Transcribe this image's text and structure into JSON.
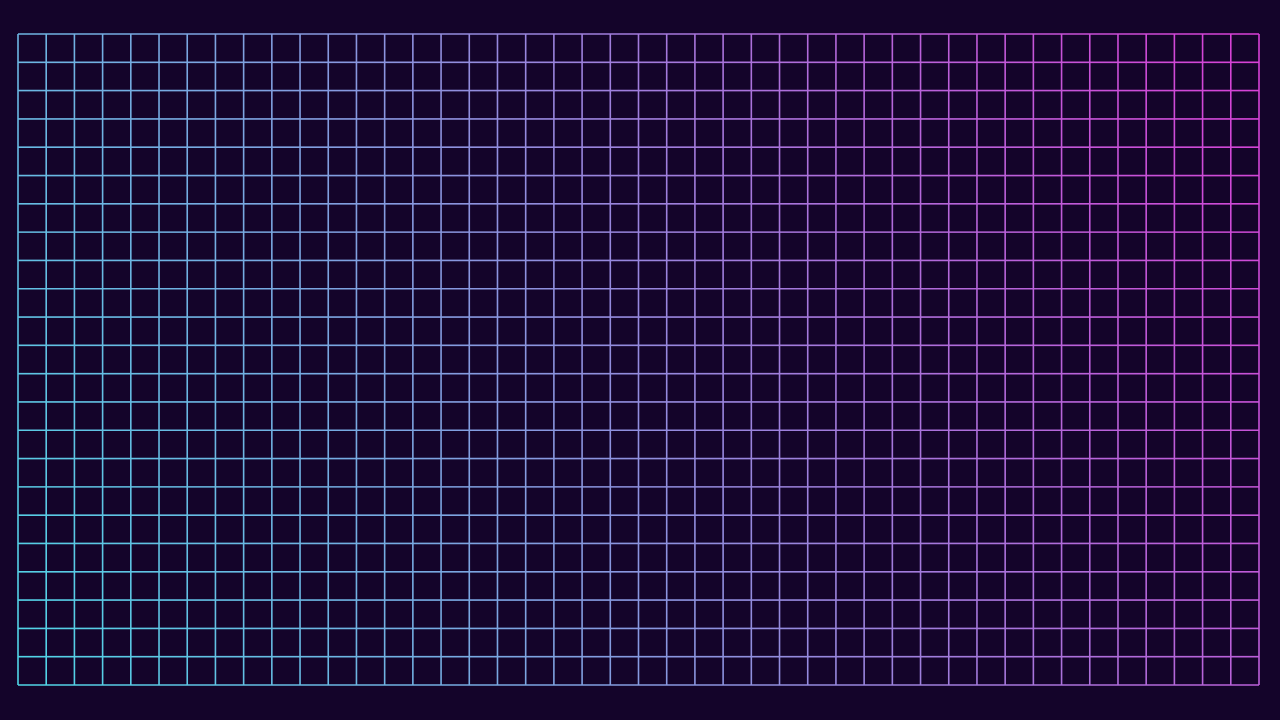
{
  "background_color": "#14042a",
  "grid": {
    "icon": "neon-grid-icon",
    "columns": 44,
    "rows": 23,
    "gradient_start_color": "#4fd6e6",
    "gradient_end_color": "#d93fd6"
  }
}
